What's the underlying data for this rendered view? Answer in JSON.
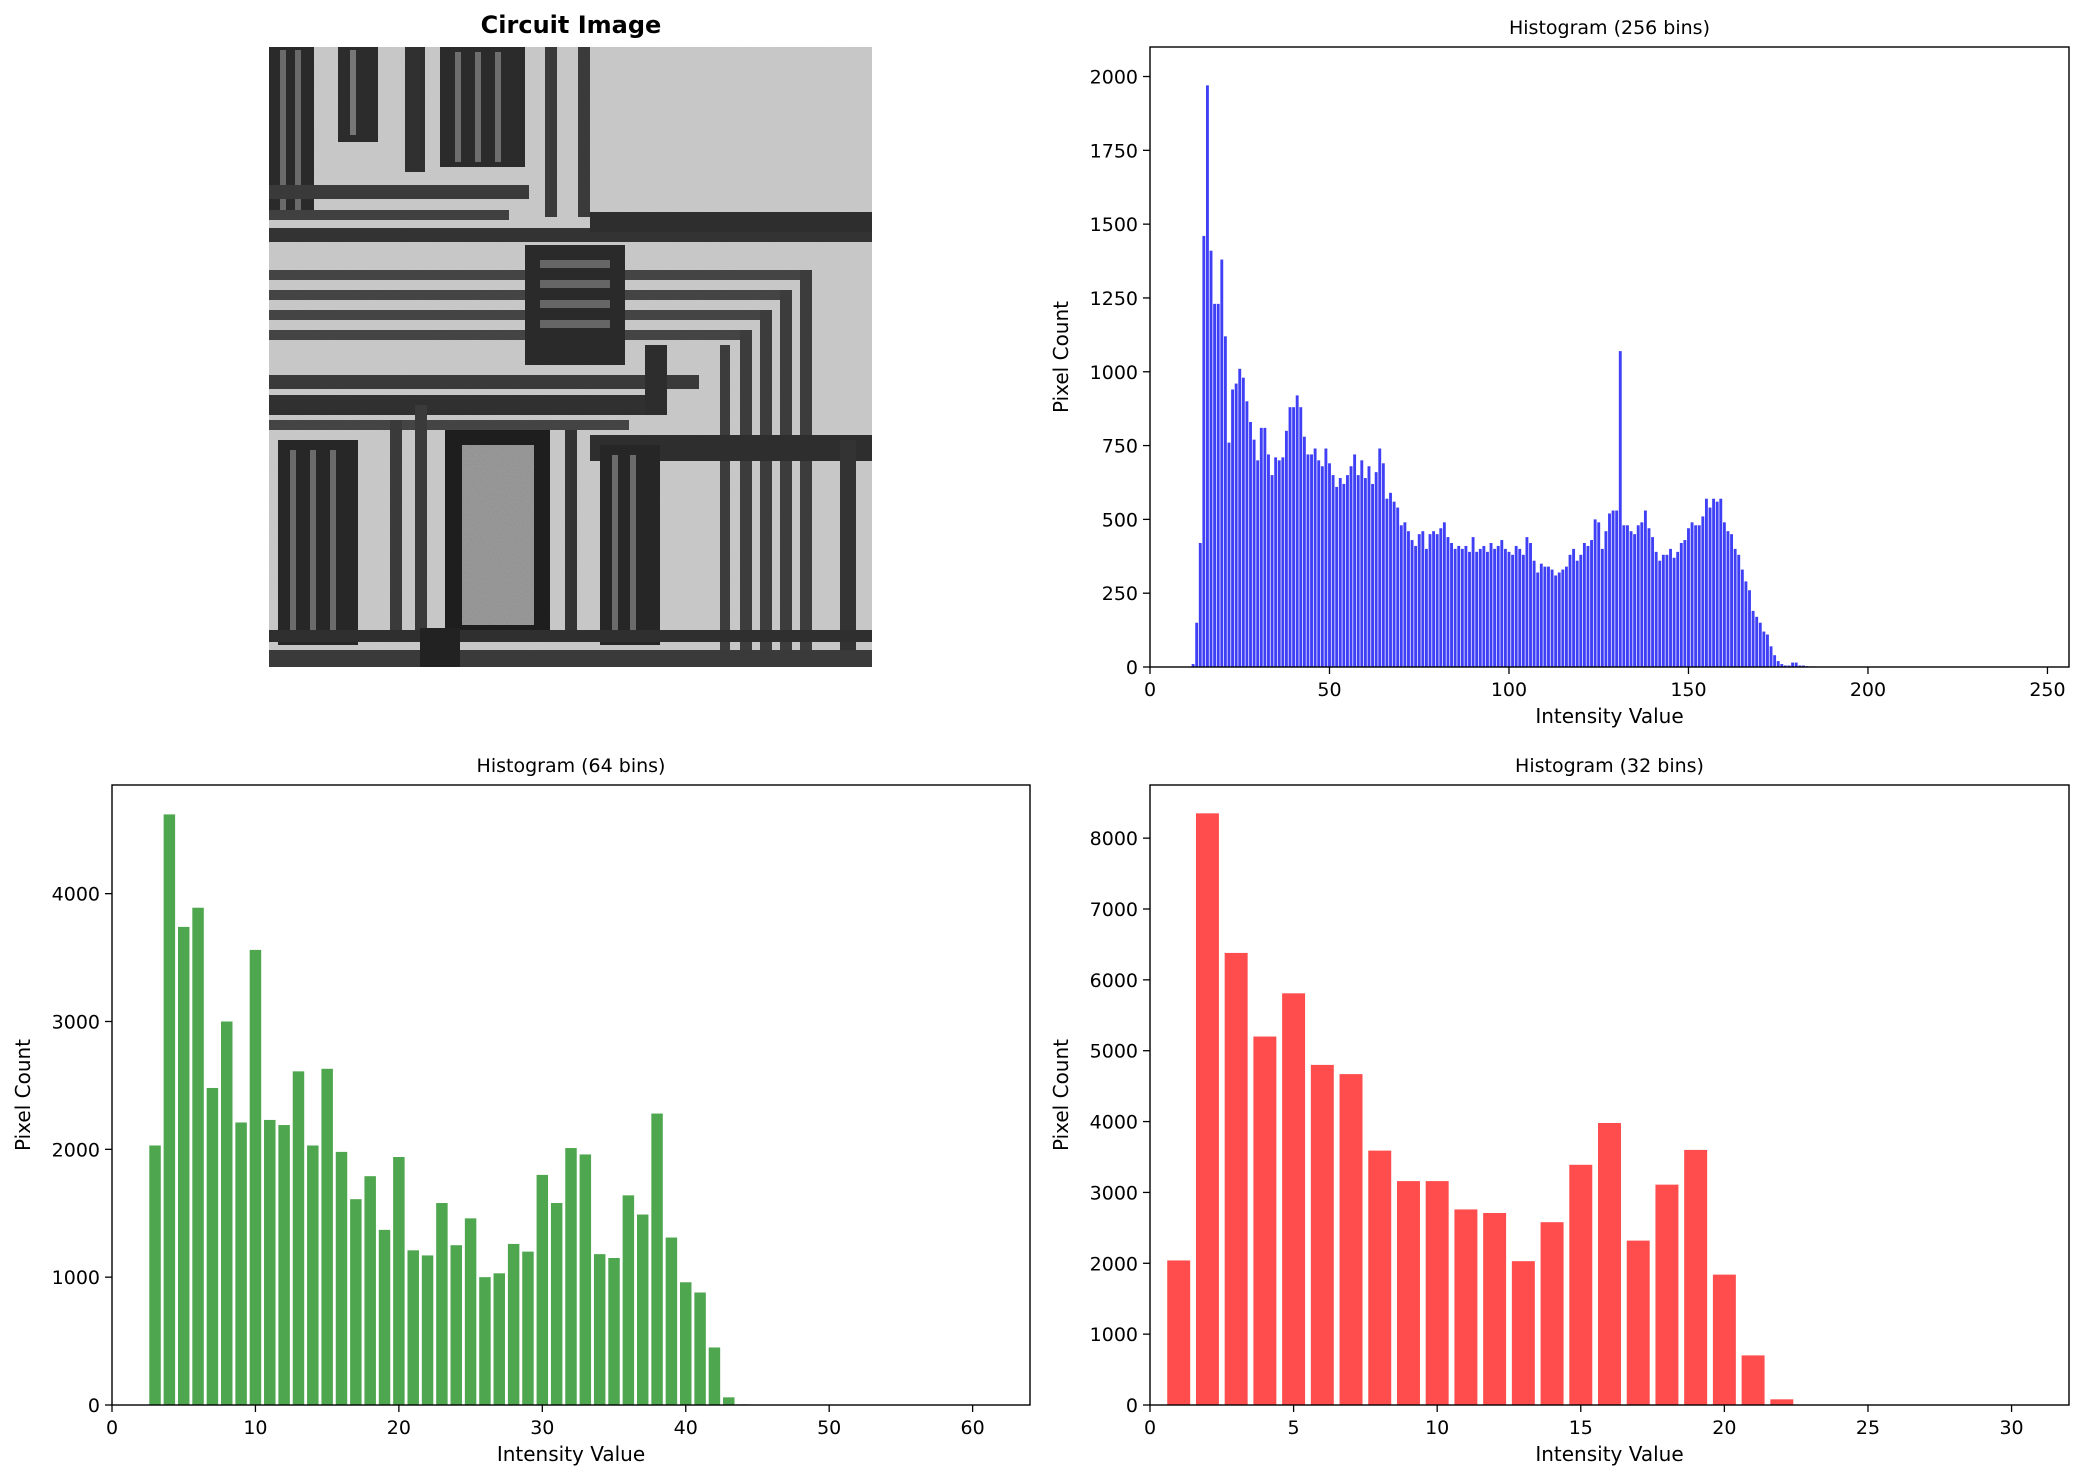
{
  "image_panel": {
    "title": "Circuit Image"
  },
  "chart_data": [
    {
      "type": "bar",
      "title": "Histogram (256 bins)",
      "xlabel": "Intensity Value",
      "ylabel": "Pixel Count",
      "xlim": [
        0,
        256
      ],
      "ylim": [
        0,
        2100
      ],
      "xticks": [
        0,
        50,
        100,
        150,
        200,
        250
      ],
      "yticks": [
        0,
        250,
        500,
        750,
        1000,
        1250,
        1500,
        1750,
        2000
      ],
      "color": "#3f3ff5",
      "bar_width": 0.8,
      "x_start": 0,
      "values": [
        0,
        0,
        0,
        0,
        0,
        0,
        0,
        0,
        0,
        0,
        0,
        0,
        10,
        150,
        420,
        1460,
        1970,
        1410,
        1230,
        1230,
        1380,
        1120,
        760,
        940,
        960,
        1010,
        980,
        900,
        830,
        770,
        700,
        810,
        810,
        720,
        650,
        710,
        700,
        710,
        800,
        880,
        880,
        920,
        880,
        780,
        720,
        720,
        740,
        700,
        680,
        740,
        690,
        650,
        610,
        640,
        620,
        650,
        680,
        720,
        650,
        700,
        640,
        680,
        620,
        660,
        740,
        690,
        570,
        590,
        560,
        540,
        480,
        490,
        460,
        430,
        410,
        450,
        460,
        400,
        450,
        460,
        450,
        470,
        490,
        440,
        420,
        400,
        410,
        400,
        410,
        390,
        440,
        390,
        400,
        410,
        390,
        420,
        400,
        410,
        430,
        400,
        390,
        380,
        410,
        400,
        380,
        440,
        420,
        360,
        320,
        350,
        340,
        340,
        330,
        310,
        320,
        330,
        340,
        380,
        400,
        360,
        380,
        420,
        410,
        430,
        500,
        490,
        400,
        460,
        520,
        530,
        530,
        1070,
        480,
        480,
        460,
        450,
        480,
        490,
        530,
        470,
        440,
        390,
        360,
        380,
        380,
        400,
        370,
        390,
        420,
        430,
        470,
        490,
        480,
        480,
        510,
        570,
        540,
        570,
        560,
        570,
        490,
        460,
        450,
        400,
        380,
        330,
        290,
        260,
        190,
        170,
        150,
        120,
        110,
        70,
        40,
        20,
        10,
        5,
        5,
        15,
        15,
        5,
        5,
        3,
        2,
        2,
        1,
        1,
        0,
        0,
        0,
        0,
        0,
        0,
        0,
        0,
        0,
        0,
        0,
        0,
        0,
        0,
        0,
        0,
        0,
        0,
        0,
        0,
        0,
        0,
        0,
        0,
        0,
        0,
        0,
        0,
        0,
        0,
        0,
        0,
        0,
        0,
        0,
        0,
        0,
        0,
        0,
        0,
        0,
        0,
        0,
        0,
        0,
        0,
        0,
        0,
        0,
        0,
        0,
        0,
        0,
        0,
        0,
        0,
        0,
        0,
        0,
        0,
        0,
        0,
        0,
        0,
        0,
        0,
        0,
        0,
        0,
        0,
        0,
        0,
        0,
        0
      ]
    },
    {
      "type": "bar",
      "title": "Histogram (64 bins)",
      "xlabel": "Intensity Value",
      "ylabel": "Pixel Count",
      "xlim": [
        0,
        64
      ],
      "ylim": [
        0,
        4850
      ],
      "xticks": [
        0,
        10,
        20,
        30,
        40,
        50,
        60
      ],
      "yticks": [
        0,
        1000,
        2000,
        3000,
        4000
      ],
      "color": "#4ea64e",
      "bar_width": 0.8,
      "x_start": 0,
      "values": [
        0,
        0,
        0,
        2030,
        4620,
        3740,
        3890,
        2480,
        3000,
        2210,
        3560,
        2230,
        2190,
        2610,
        2030,
        2630,
        1980,
        1610,
        1790,
        1370,
        1940,
        1210,
        1170,
        1580,
        1250,
        1460,
        1000,
        1030,
        1260,
        1200,
        1800,
        1580,
        2010,
        1960,
        1180,
        1150,
        1640,
        1490,
        2280,
        1310,
        960,
        880,
        450,
        60,
        5,
        2,
        0,
        0,
        0,
        0,
        0,
        0,
        0,
        0,
        0,
        0,
        0,
        0,
        0,
        0,
        0,
        0,
        0,
        0
      ]
    },
    {
      "type": "bar",
      "title": "Histogram (32 bins)",
      "xlabel": "Intensity Value",
      "ylabel": "Pixel Count",
      "xlim": [
        0,
        32
      ],
      "ylim": [
        0,
        8750
      ],
      "xticks": [
        0,
        5,
        10,
        15,
        20,
        25,
        30
      ],
      "yticks": [
        0,
        1000,
        2000,
        3000,
        4000,
        5000,
        6000,
        7000,
        8000
      ],
      "color": "#ff4d4d",
      "bar_width": 0.8,
      "x_start": 0,
      "values": [
        0,
        2040,
        8350,
        6380,
        5200,
        5810,
        4800,
        4670,
        3590,
        3160,
        3160,
        2760,
        2710,
        2030,
        2580,
        3390,
        3980,
        2320,
        3110,
        3600,
        1840,
        700,
        80,
        5,
        0,
        0,
        0,
        0,
        0,
        0,
        0,
        0
      ]
    }
  ]
}
